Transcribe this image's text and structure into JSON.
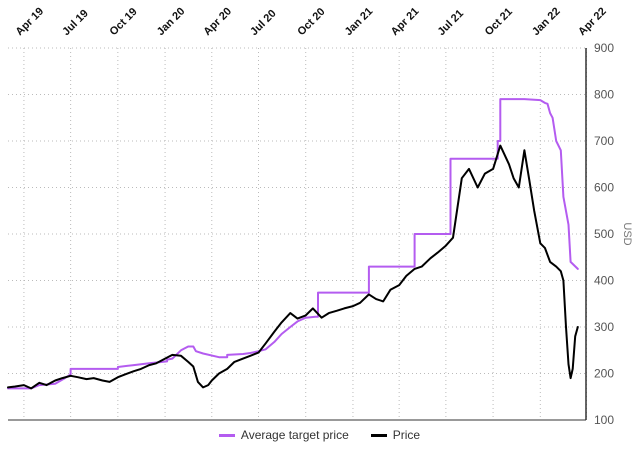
{
  "chart_data": {
    "type": "line",
    "title": "",
    "ylabel": "USD",
    "ylim": [
      100,
      900
    ],
    "yticks": [
      100,
      200,
      300,
      400,
      500,
      600,
      700,
      800,
      900
    ],
    "xticks": [
      "Apr 19",
      "Jul 19",
      "Oct 19",
      "Jan 20",
      "Apr 20",
      "Jul 20",
      "Oct 20",
      "Jan 21",
      "Apr 21",
      "Jul 21",
      "Oct 21",
      "Jan 22",
      "Apr 22"
    ],
    "grid": true,
    "legend_position": "bottom",
    "series": [
      {
        "name": "Average target price",
        "color": "#b45cf0",
        "x": [
          "2019-03-01",
          "2019-04-15",
          "2019-05-01",
          "2019-06-01",
          "2019-06-20",
          "2019-07-01",
          "2019-07-01",
          "2019-08-15",
          "2019-09-01",
          "2019-10-01",
          "2019-10-01",
          "2019-11-01",
          "2019-12-01",
          "2019-12-20",
          "2020-01-05",
          "2020-01-05",
          "2020-01-15",
          "2020-02-01",
          "2020-02-15",
          "2020-02-25",
          "2020-03-01",
          "2020-03-15",
          "2020-04-15",
          "2020-05-01",
          "2020-05-01",
          "2020-06-01",
          "2020-06-15",
          "2020-07-01",
          "2020-07-01",
          "2020-07-15",
          "2020-08-01",
          "2020-08-15",
          "2020-09-01",
          "2020-09-15",
          "2020-09-15",
          "2020-10-01",
          "2020-10-20",
          "2020-10-25",
          "2020-10-25",
          "2020-12-01",
          "2021-01-01",
          "2021-01-15",
          "2021-02-01",
          "2021-02-01",
          "2021-03-15",
          "2021-04-15",
          "2021-05-01",
          "2021-05-01",
          "2021-06-01",
          "2021-06-15",
          "2021-06-15",
          "2021-07-01",
          "2021-07-10",
          "2021-07-10",
          "2021-08-15",
          "2021-09-15",
          "2021-10-01",
          "2021-10-10",
          "2021-10-10",
          "2021-10-15",
          "2021-10-15",
          "2021-11-01",
          "2021-12-01",
          "2022-01-01",
          "2022-01-10",
          "2022-01-15",
          "2022-01-20",
          "2022-01-25",
          "2022-02-01",
          "2022-02-10",
          "2022-02-15",
          "2022-02-25",
          "2022-03-01",
          "2022-03-15"
        ],
        "values": [
          168,
          168,
          175,
          178,
          190,
          198,
          210,
          210,
          210,
          210,
          214,
          218,
          222,
          224,
          226,
          230,
          232,
          250,
          258,
          258,
          248,
          243,
          235,
          235,
          240,
          242,
          244,
          248,
          248,
          252,
          268,
          285,
          300,
          312,
          312,
          320,
          322,
          322,
          374,
          374,
          374,
          374,
          374,
          430,
          430,
          430,
          430,
          500,
          500,
          500,
          500,
          500,
          500,
          662,
          662,
          662,
          662,
          662,
          700,
          700,
          790,
          790,
          790,
          788,
          782,
          780,
          760,
          750,
          700,
          680,
          580,
          520,
          440,
          425
        ]
      },
      {
        "name": "Price",
        "color": "#000000",
        "x": [
          "2019-03-01",
          "2019-03-15",
          "2019-04-01",
          "2019-04-15",
          "2019-05-01",
          "2019-05-15",
          "2019-06-01",
          "2019-06-15",
          "2019-07-01",
          "2019-07-15",
          "2019-08-01",
          "2019-08-15",
          "2019-09-01",
          "2019-09-15",
          "2019-10-01",
          "2019-10-15",
          "2019-11-01",
          "2019-11-15",
          "2019-12-01",
          "2019-12-15",
          "2020-01-01",
          "2020-01-15",
          "2020-02-01",
          "2020-02-15",
          "2020-02-25",
          "2020-03-05",
          "2020-03-15",
          "2020-03-25",
          "2020-04-01",
          "2020-04-15",
          "2020-05-01",
          "2020-05-15",
          "2020-06-01",
          "2020-06-15",
          "2020-07-01",
          "2020-07-15",
          "2020-08-01",
          "2020-08-15",
          "2020-09-01",
          "2020-09-15",
          "2020-10-01",
          "2020-10-15",
          "2020-11-01",
          "2020-11-15",
          "2020-12-01",
          "2020-12-15",
          "2021-01-01",
          "2021-01-15",
          "2021-02-01",
          "2021-02-15",
          "2021-03-01",
          "2021-03-15",
          "2021-04-01",
          "2021-04-15",
          "2021-05-01",
          "2021-05-15",
          "2021-06-01",
          "2021-06-15",
          "2021-07-01",
          "2021-07-15",
          "2021-08-01",
          "2021-08-15",
          "2021-09-01",
          "2021-09-15",
          "2021-10-01",
          "2021-10-15",
          "2021-11-01",
          "2021-11-10",
          "2021-11-20",
          "2021-12-01",
          "2021-12-10",
          "2021-12-20",
          "2022-01-01",
          "2022-01-10",
          "2022-01-20",
          "2022-02-01",
          "2022-02-10",
          "2022-02-15",
          "2022-02-20",
          "2022-02-25",
          "2022-03-01",
          "2022-03-05",
          "2022-03-10",
          "2022-03-15"
        ],
        "values": [
          170,
          172,
          175,
          168,
          180,
          175,
          185,
          190,
          195,
          192,
          188,
          190,
          185,
          182,
          192,
          198,
          205,
          210,
          218,
          222,
          232,
          240,
          238,
          225,
          215,
          182,
          170,
          175,
          185,
          200,
          210,
          225,
          232,
          238,
          245,
          265,
          290,
          310,
          330,
          318,
          325,
          340,
          320,
          330,
          335,
          340,
          345,
          352,
          370,
          360,
          355,
          380,
          390,
          410,
          425,
          430,
          448,
          460,
          475,
          492,
          620,
          640,
          600,
          630,
          640,
          690,
          650,
          620,
          600,
          680,
          620,
          550,
          480,
          470,
          440,
          430,
          420,
          400,
          300,
          220,
          190,
          210,
          280,
          300
        ]
      }
    ]
  }
}
